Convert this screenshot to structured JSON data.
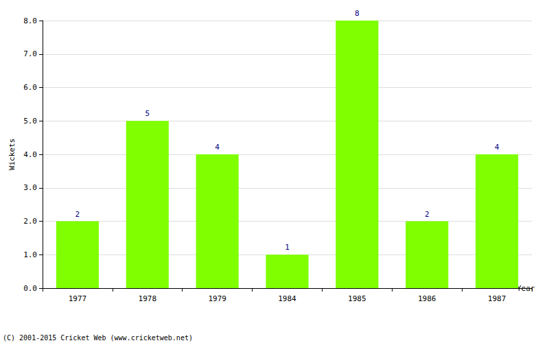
{
  "chart_data": {
    "type": "bar",
    "categories": [
      "1977",
      "1978",
      "1979",
      "1984",
      "1985",
      "1986",
      "1987"
    ],
    "values": [
      2,
      5,
      4,
      1,
      8,
      2,
      4
    ],
    "color": "#7fff00",
    "x_label": "Year",
    "y_label": "Wickets",
    "ylim": [
      0,
      8
    ],
    "yticks": [
      {
        "value": 0,
        "label": "0.0"
      },
      {
        "value": 1,
        "label": "1.0"
      },
      {
        "value": 2,
        "label": "2.0"
      },
      {
        "value": 3,
        "label": "3.0"
      },
      {
        "value": 4,
        "label": "4.0"
      },
      {
        "value": 5,
        "label": "5.0"
      },
      {
        "value": 6,
        "label": "6.0"
      },
      {
        "value": 7,
        "label": "7.0"
      },
      {
        "value": 8,
        "label": "8.0"
      }
    ],
    "grid": true,
    "data_labels": true,
    "annotations": [
      "(C) 2001-2015 Cricket Web (www.cricketweb.net)"
    ]
  }
}
